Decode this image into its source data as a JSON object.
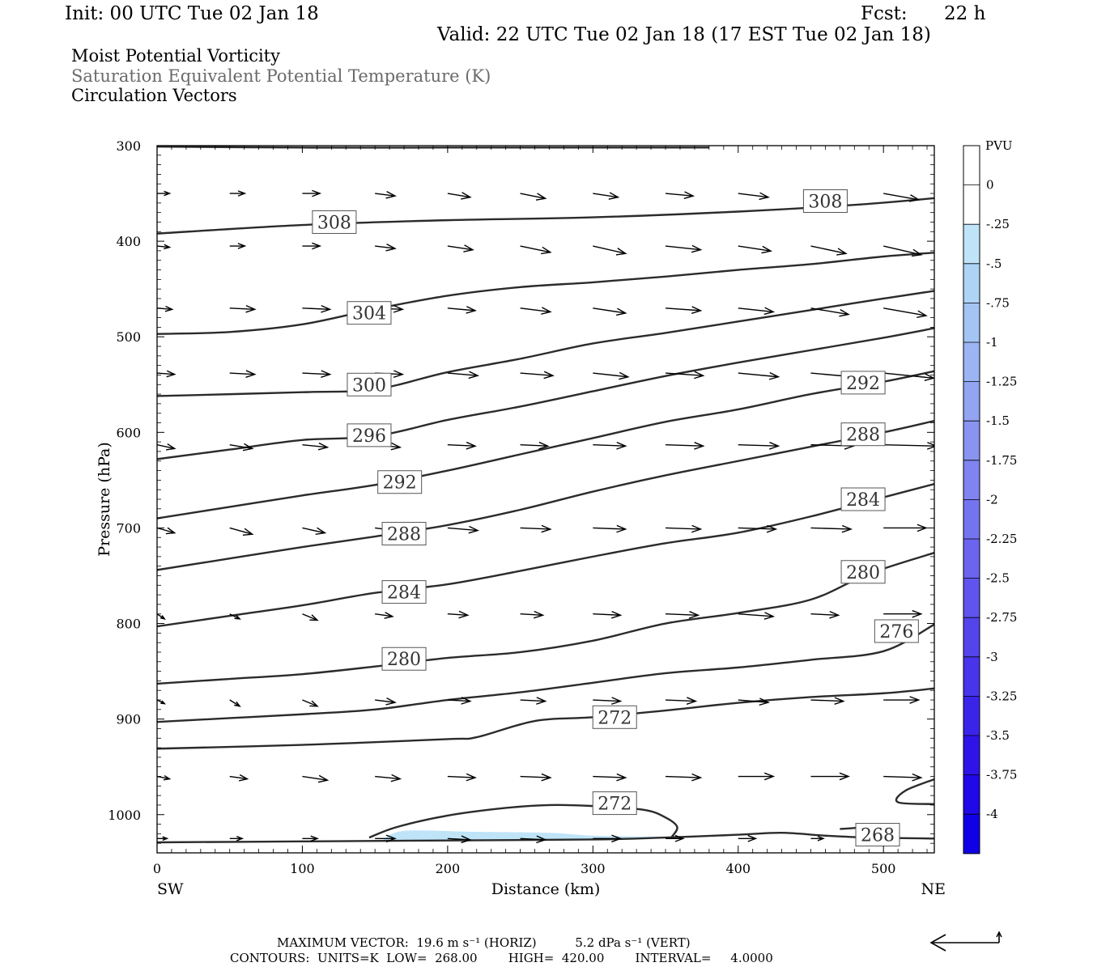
{
  "header": {
    "init": "Init: 00 UTC Tue 02 Jan 18",
    "fcst_label": "Fcst:",
    "fcst_value": "22 h",
    "valid": "Valid: 22 UTC Tue 02 Jan 18 (17 EST Tue 02 Jan 18)"
  },
  "titles": {
    "line1": "Moist Potential Vorticity",
    "line2": "Saturation Equivalent Potential Temperature (K)",
    "line3": "Circulation Vectors"
  },
  "colors": {
    "contour": "#2b2b2b",
    "pv_shade": "#bfe4f8",
    "vector": "#000000"
  },
  "chart_data": {
    "type": "line",
    "xlabel": "Distance (km)",
    "ylabel": "Pressure (hPa)",
    "xlim": [
      0,
      535
    ],
    "ylim": [
      1040,
      300
    ],
    "y_scale": "linear-reversed",
    "x_ticks": [
      0,
      100,
      200,
      300,
      400,
      500
    ],
    "y_ticks": [
      300,
      400,
      500,
      600,
      700,
      800,
      900,
      1000
    ],
    "x_end_labels": {
      "left": "SW",
      "right": "NE"
    },
    "series": [
      {
        "label": "308",
        "points": [
          [
            0,
            392
          ],
          [
            100,
            383
          ],
          [
            200,
            378
          ],
          [
            300,
            375
          ],
          [
            400,
            369
          ],
          [
            480,
            362
          ],
          [
            535,
            355
          ]
        ],
        "label_positions": [
          [
            122,
            380
          ],
          [
            460,
            358
          ]
        ]
      },
      {
        "label": "304",
        "points": [
          [
            0,
            497
          ],
          [
            50,
            495
          ],
          [
            100,
            487
          ],
          [
            150,
            471
          ],
          [
            200,
            457
          ],
          [
            250,
            448
          ],
          [
            300,
            443
          ],
          [
            350,
            437
          ],
          [
            400,
            430
          ],
          [
            450,
            424
          ],
          [
            500,
            416
          ],
          [
            535,
            412
          ]
        ],
        "label_positions": [
          [
            146,
            475
          ]
        ]
      },
      {
        "label": "300",
        "points": [
          [
            0,
            562
          ],
          [
            100,
            558
          ],
          [
            150,
            555
          ],
          [
            200,
            537
          ],
          [
            250,
            523
          ],
          [
            300,
            507
          ],
          [
            350,
            496
          ],
          [
            400,
            484
          ],
          [
            450,
            472
          ],
          [
            500,
            460
          ],
          [
            535,
            452
          ]
        ],
        "label_positions": [
          [
            146,
            550
          ]
        ]
      },
      {
        "label": "296",
        "points": [
          [
            0,
            628
          ],
          [
            50,
            618
          ],
          [
            100,
            608
          ],
          [
            150,
            604
          ],
          [
            200,
            587
          ],
          [
            250,
            573
          ],
          [
            300,
            557
          ],
          [
            350,
            541
          ],
          [
            400,
            527
          ],
          [
            450,
            514
          ],
          [
            500,
            501
          ],
          [
            535,
            491
          ]
        ],
        "label_positions": [
          [
            146,
            603
          ]
        ]
      },
      {
        "label": "292",
        "points": [
          [
            0,
            690
          ],
          [
            50,
            678
          ],
          [
            100,
            666
          ],
          [
            150,
            655
          ],
          [
            200,
            640
          ],
          [
            250,
            623
          ],
          [
            300,
            606
          ],
          [
            350,
            589
          ],
          [
            400,
            576
          ],
          [
            450,
            560
          ],
          [
            500,
            547
          ],
          [
            535,
            536
          ]
        ],
        "label_positions": [
          [
            167,
            652
          ],
          [
            486,
            548
          ]
        ]
      },
      {
        "label": "288",
        "points": [
          [
            0,
            744
          ],
          [
            50,
            732
          ],
          [
            100,
            720
          ],
          [
            150,
            709
          ],
          [
            200,
            697
          ],
          [
            250,
            681
          ],
          [
            300,
            662
          ],
          [
            350,
            645
          ],
          [
            400,
            630
          ],
          [
            450,
            615
          ],
          [
            500,
            600
          ],
          [
            535,
            588
          ]
        ],
        "label_positions": [
          [
            170,
            706
          ],
          [
            486,
            602
          ]
        ]
      },
      {
        "label": "284",
        "points": [
          [
            0,
            803
          ],
          [
            50,
            792
          ],
          [
            100,
            781
          ],
          [
            150,
            768
          ],
          [
            200,
            759
          ],
          [
            250,
            745
          ],
          [
            300,
            730
          ],
          [
            350,
            716
          ],
          [
            400,
            705
          ],
          [
            450,
            688
          ],
          [
            500,
            668
          ],
          [
            535,
            654
          ]
        ],
        "label_positions": [
          [
            170,
            767
          ],
          [
            486,
            670
          ]
        ]
      },
      {
        "label": "280",
        "points": [
          [
            0,
            863
          ],
          [
            50,
            858
          ],
          [
            100,
            853
          ],
          [
            150,
            845
          ],
          [
            200,
            836
          ],
          [
            250,
            830
          ],
          [
            300,
            818
          ],
          [
            350,
            800
          ],
          [
            400,
            789
          ],
          [
            450,
            775
          ],
          [
            490,
            748
          ],
          [
            535,
            726
          ]
        ],
        "label_positions": [
          [
            170,
            837
          ],
          [
            486,
            746
          ]
        ]
      },
      {
        "label": "276",
        "points": [
          [
            0,
            903
          ],
          [
            50,
            899
          ],
          [
            100,
            895
          ],
          [
            150,
            890
          ],
          [
            200,
            880
          ],
          [
            250,
            872
          ],
          [
            300,
            862
          ],
          [
            350,
            852
          ],
          [
            400,
            846
          ],
          [
            450,
            838
          ],
          [
            500,
            829
          ],
          [
            535,
            801
          ]
        ],
        "label_positions": [
          [
            509,
            808
          ]
        ]
      },
      {
        "label": "272",
        "points": [
          [
            0,
            931
          ],
          [
            100,
            927
          ],
          [
            200,
            921
          ],
          [
            220,
            919
          ],
          [
            260,
            902
          ],
          [
            300,
            898
          ],
          [
            350,
            891
          ],
          [
            400,
            883
          ],
          [
            450,
            877
          ],
          [
            500,
            873
          ],
          [
            535,
            868
          ]
        ],
        "label_positions": [
          [
            315,
            898
          ]
        ]
      },
      {
        "label": "272",
        "points": [
          [
            146,
            1024
          ],
          [
            165,
            1013
          ],
          [
            200,
            1001
          ],
          [
            240,
            993
          ],
          [
            270,
            990
          ],
          [
            300,
            991
          ],
          [
            335,
            995
          ],
          [
            350,
            1003
          ],
          [
            358,
            1013
          ],
          [
            354,
            1024
          ]
        ],
        "label_positions": [
          [
            315,
            988
          ]
        ]
      },
      {
        "label": "268",
        "points": [
          [
            0,
            1029
          ],
          [
            100,
            1028
          ],
          [
            200,
            1027
          ],
          [
            300,
            1026
          ],
          [
            350,
            1024
          ],
          [
            400,
            1021
          ],
          [
            430,
            1019
          ],
          [
            460,
            1022
          ],
          [
            490,
            1024
          ],
          [
            535,
            1025
          ]
        ],
        "label_positions": [
          [
            496,
            1021
          ]
        ]
      },
      {
        "label": "",
        "points": [
          [
            0,
            301
          ],
          [
            100,
            302
          ],
          [
            200,
            302
          ],
          [
            300,
            302
          ],
          [
            380,
            302
          ]
        ],
        "label_positions": []
      },
      {
        "label": "",
        "points": [
          [
            535,
            963
          ],
          [
            515,
            975
          ],
          [
            510,
            987
          ],
          [
            535,
            989
          ]
        ],
        "label_positions": []
      },
      {
        "label": "",
        "points": [
          [
            470,
            1015
          ],
          [
            490,
            1013
          ],
          [
            500,
            1011
          ]
        ],
        "label_positions": []
      }
    ],
    "pv_shading": [
      {
        "value": -0.25,
        "points": [
          [
            155,
            1027
          ],
          [
            170,
            1017
          ],
          [
            220,
            1018
          ],
          [
            270,
            1019
          ],
          [
            300,
            1022
          ],
          [
            340,
            1023
          ],
          [
            350,
            1024
          ],
          [
            290,
            1027
          ],
          [
            155,
            1028
          ]
        ]
      }
    ],
    "vectors": {
      "x": [
        0,
        50,
        100,
        150,
        200,
        250,
        300,
        350,
        400,
        450,
        500
      ],
      "levels": [
        {
          "p": 350,
          "u": [
            10,
            12,
            14,
            16,
            18,
            20,
            20,
            22,
            24,
            26,
            28
          ],
          "w": [
            0,
            0,
            0,
            -2,
            -3,
            -4,
            -3,
            -2,
            -3,
            -4,
            -5
          ]
        },
        {
          "p": 405,
          "u": [
            10,
            12,
            14,
            16,
            20,
            24,
            26,
            28,
            26,
            28,
            30
          ],
          "w": [
            -1,
            0,
            0,
            -2,
            -3,
            -5,
            -6,
            -3,
            -4,
            -6,
            -7
          ]
        },
        {
          "p": 470,
          "u": [
            12,
            20,
            22,
            22,
            22,
            24,
            26,
            28,
            28,
            30,
            34
          ],
          "w": [
            -1,
            -1,
            -1,
            -1,
            -2,
            -3,
            -4,
            -2,
            -3,
            -5,
            -6
          ]
        },
        {
          "p": 538,
          "u": [
            14,
            20,
            22,
            22,
            24,
            26,
            28,
            30,
            32,
            34,
            40
          ],
          "w": [
            -1,
            -1,
            -1,
            -1,
            -2,
            -2,
            -3,
            -2,
            -3,
            -3,
            -4
          ]
        },
        {
          "p": 613,
          "u": [
            14,
            18,
            20,
            20,
            22,
            22,
            26,
            30,
            32,
            34,
            42
          ],
          "w": [
            -3,
            -3,
            -2,
            -2,
            -1,
            -1,
            -1,
            -1,
            -1,
            -1,
            -1
          ]
        },
        {
          "p": 700,
          "u": [
            14,
            18,
            18,
            22,
            24,
            24,
            26,
            28,
            30,
            32,
            34
          ],
          "w": [
            -4,
            -5,
            -4,
            -3,
            -2,
            -1,
            -1,
            -1,
            -1,
            -1,
            0
          ]
        },
        {
          "p": 790,
          "u": [
            6,
            8,
            12,
            14,
            16,
            18,
            22,
            26,
            28,
            22,
            30
          ],
          "w": [
            -4,
            -4,
            -5,
            -2,
            -1,
            -1,
            -1,
            -1,
            -2,
            -1,
            0
          ]
        },
        {
          "p": 880,
          "u": [
            6,
            8,
            12,
            16,
            18,
            20,
            22,
            24,
            24,
            26,
            28
          ],
          "w": [
            -3,
            -5,
            -5,
            -2,
            -1,
            -1,
            -1,
            -1,
            -2,
            -1,
            0
          ]
        },
        {
          "p": 960,
          "u": [
            10,
            14,
            20,
            20,
            22,
            24,
            26,
            28,
            28,
            30,
            30
          ],
          "w": [
            -2,
            -2,
            -3,
            -2,
            -1,
            -1,
            -1,
            -1,
            0,
            0,
            -1
          ]
        },
        {
          "p": 1025,
          "u": [
            8,
            10,
            12,
            16,
            18,
            20,
            22,
            14,
            14,
            10,
            0
          ],
          "w": [
            0,
            0,
            0,
            0,
            -1,
            -1,
            0,
            0,
            0,
            0,
            0
          ]
        }
      ]
    },
    "colorbar": {
      "unit_label": "PVU",
      "tick_labels": [
        "0",
        "-.25",
        "-.5",
        "-.75",
        "-1",
        "-1.25",
        "-1.5",
        "-1.75",
        "-2",
        "-2.25",
        "-2.5",
        "-2.75",
        "-3",
        "-3.25",
        "-3.5",
        "-3.75",
        "-4"
      ],
      "colors": [
        "#ffffff",
        "#ffffff",
        "#bfe4f8",
        "#aed4f5",
        "#a4c4f4",
        "#9bb4f3",
        "#92a4f2",
        "#8994f1",
        "#8084f0",
        "#7574ef",
        "#6a64ee",
        "#5f54ed",
        "#5344ec",
        "#4734eb",
        "#3b24ea",
        "#2f14e9",
        "#2008e8",
        "#1000e5"
      ]
    }
  },
  "footer": {
    "max_vector": "MAXIMUM VECTOR:  19.6 m s⁻¹ (HORIZ)          5.2 dPa s⁻¹ (VERT)",
    "contours": "CONTOURS:  UNITS=K  LOW=  268.00        HIGH=  420.00        INTERVAL=     4.0000"
  }
}
